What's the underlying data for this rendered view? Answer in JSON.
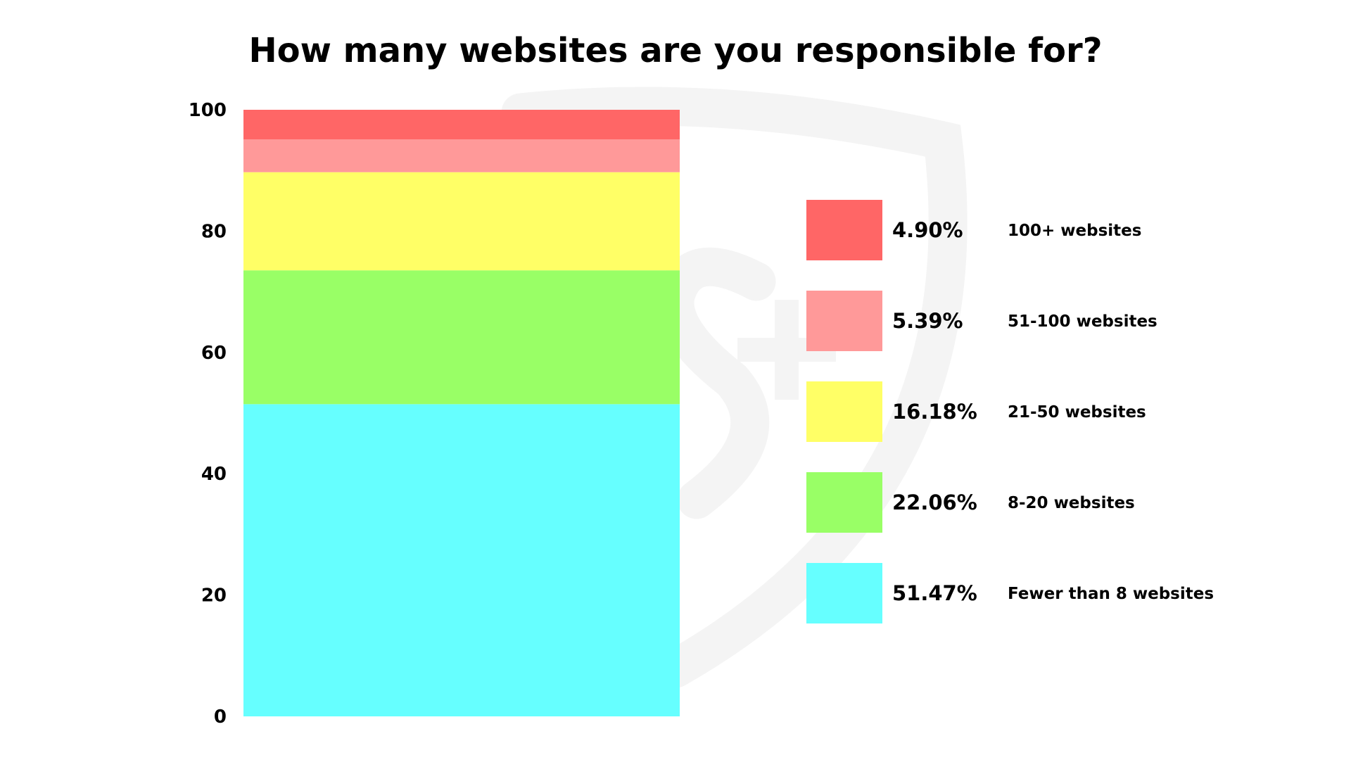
{
  "chart_data": {
    "type": "bar",
    "stacked": true,
    "title": "How many websites are you responsible for?",
    "ylim": [
      0,
      100
    ],
    "yticks": [
      0,
      20,
      40,
      60,
      80,
      100
    ],
    "grid": false,
    "legend_position": "right",
    "series": [
      {
        "name": "Fewer than 8 websites",
        "value": 51.47,
        "label": "51.47%",
        "color": "#66ffff"
      },
      {
        "name": "8-20 websites",
        "value": 22.06,
        "label": "22.06%",
        "color": "#99ff66"
      },
      {
        "name": "21-50 websites",
        "value": 16.18,
        "label": "16.18%",
        "color": "#ffff66"
      },
      {
        "name": "51-100 websites",
        "value": 5.39,
        "label": "5.39%",
        "color": "#ff9999"
      },
      {
        "name": "100+ websites",
        "value": 4.9,
        "label": "4.90%",
        "color": "#ff6666"
      }
    ]
  },
  "watermark": {
    "icon": "shield-logo-icon",
    "color": "#f4f4f4"
  }
}
